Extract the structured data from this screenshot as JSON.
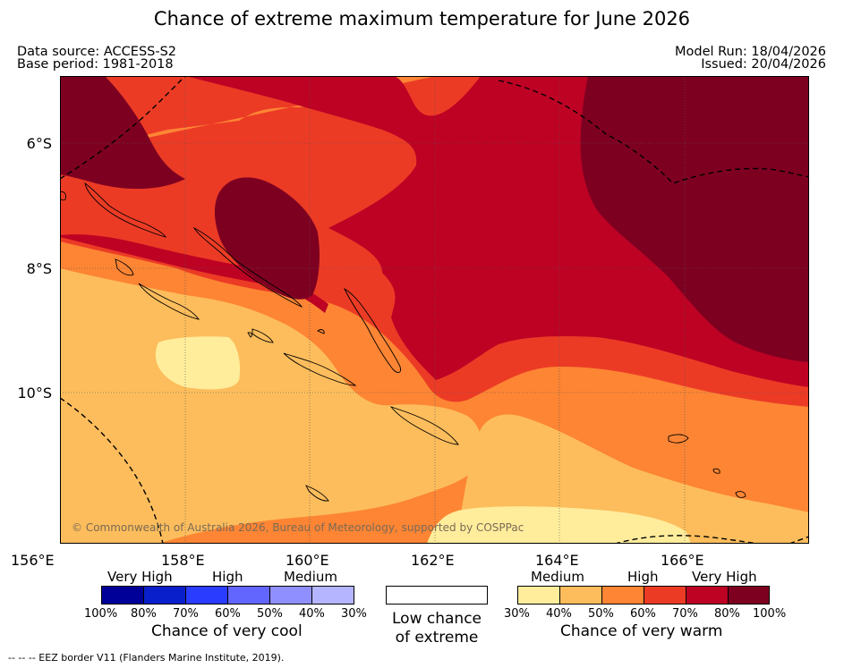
{
  "title": "Chance of extreme maximum temperature for June 2026",
  "meta": {
    "data_source": "Data source: ACCESS-S2",
    "base_period": "Base period: 1981-2018",
    "model_run": "Model Run: 18/04/2026",
    "issued": "Issued: 20/04/2026"
  },
  "axes": {
    "lat_labels": [
      "6°S",
      "8°S",
      "10°S"
    ],
    "lon_labels": [
      "156°E",
      "158°E",
      "160°E",
      "162°E",
      "164°E",
      "166°E"
    ]
  },
  "copyright": "© Commonwealth of Australia 2026, Bureau of Meteorology, supported by COSPPac",
  "legend": {
    "cool": {
      "categories": [
        "Very High",
        "High",
        "Medium"
      ],
      "ticks": [
        "100%",
        "80%",
        "70%",
        "60%",
        "50%",
        "40%",
        "30%"
      ],
      "colors": [
        "#000099",
        "#0a1fcc",
        "#2a3cff",
        "#6266ff",
        "#8f8fff",
        "#b5b5ff"
      ],
      "label": "Chance of very cool"
    },
    "neutral": {
      "line1": "Low chance",
      "line2": "of extreme"
    },
    "warm": {
      "categories": [
        "Medium",
        "High",
        "Very High"
      ],
      "ticks": [
        "30%",
        "40%",
        "50%",
        "60%",
        "70%",
        "80%",
        "100%"
      ],
      "colors": [
        "#ffed9c",
        "#fdbd5c",
        "#fd8534",
        "#ec3b25",
        "#bd0224",
        "#7e0021"
      ],
      "label": "Chance of very warm"
    }
  },
  "footnote": "--  --  -- EEZ border V11 (Flanders Marine Institute, 2019)."
}
